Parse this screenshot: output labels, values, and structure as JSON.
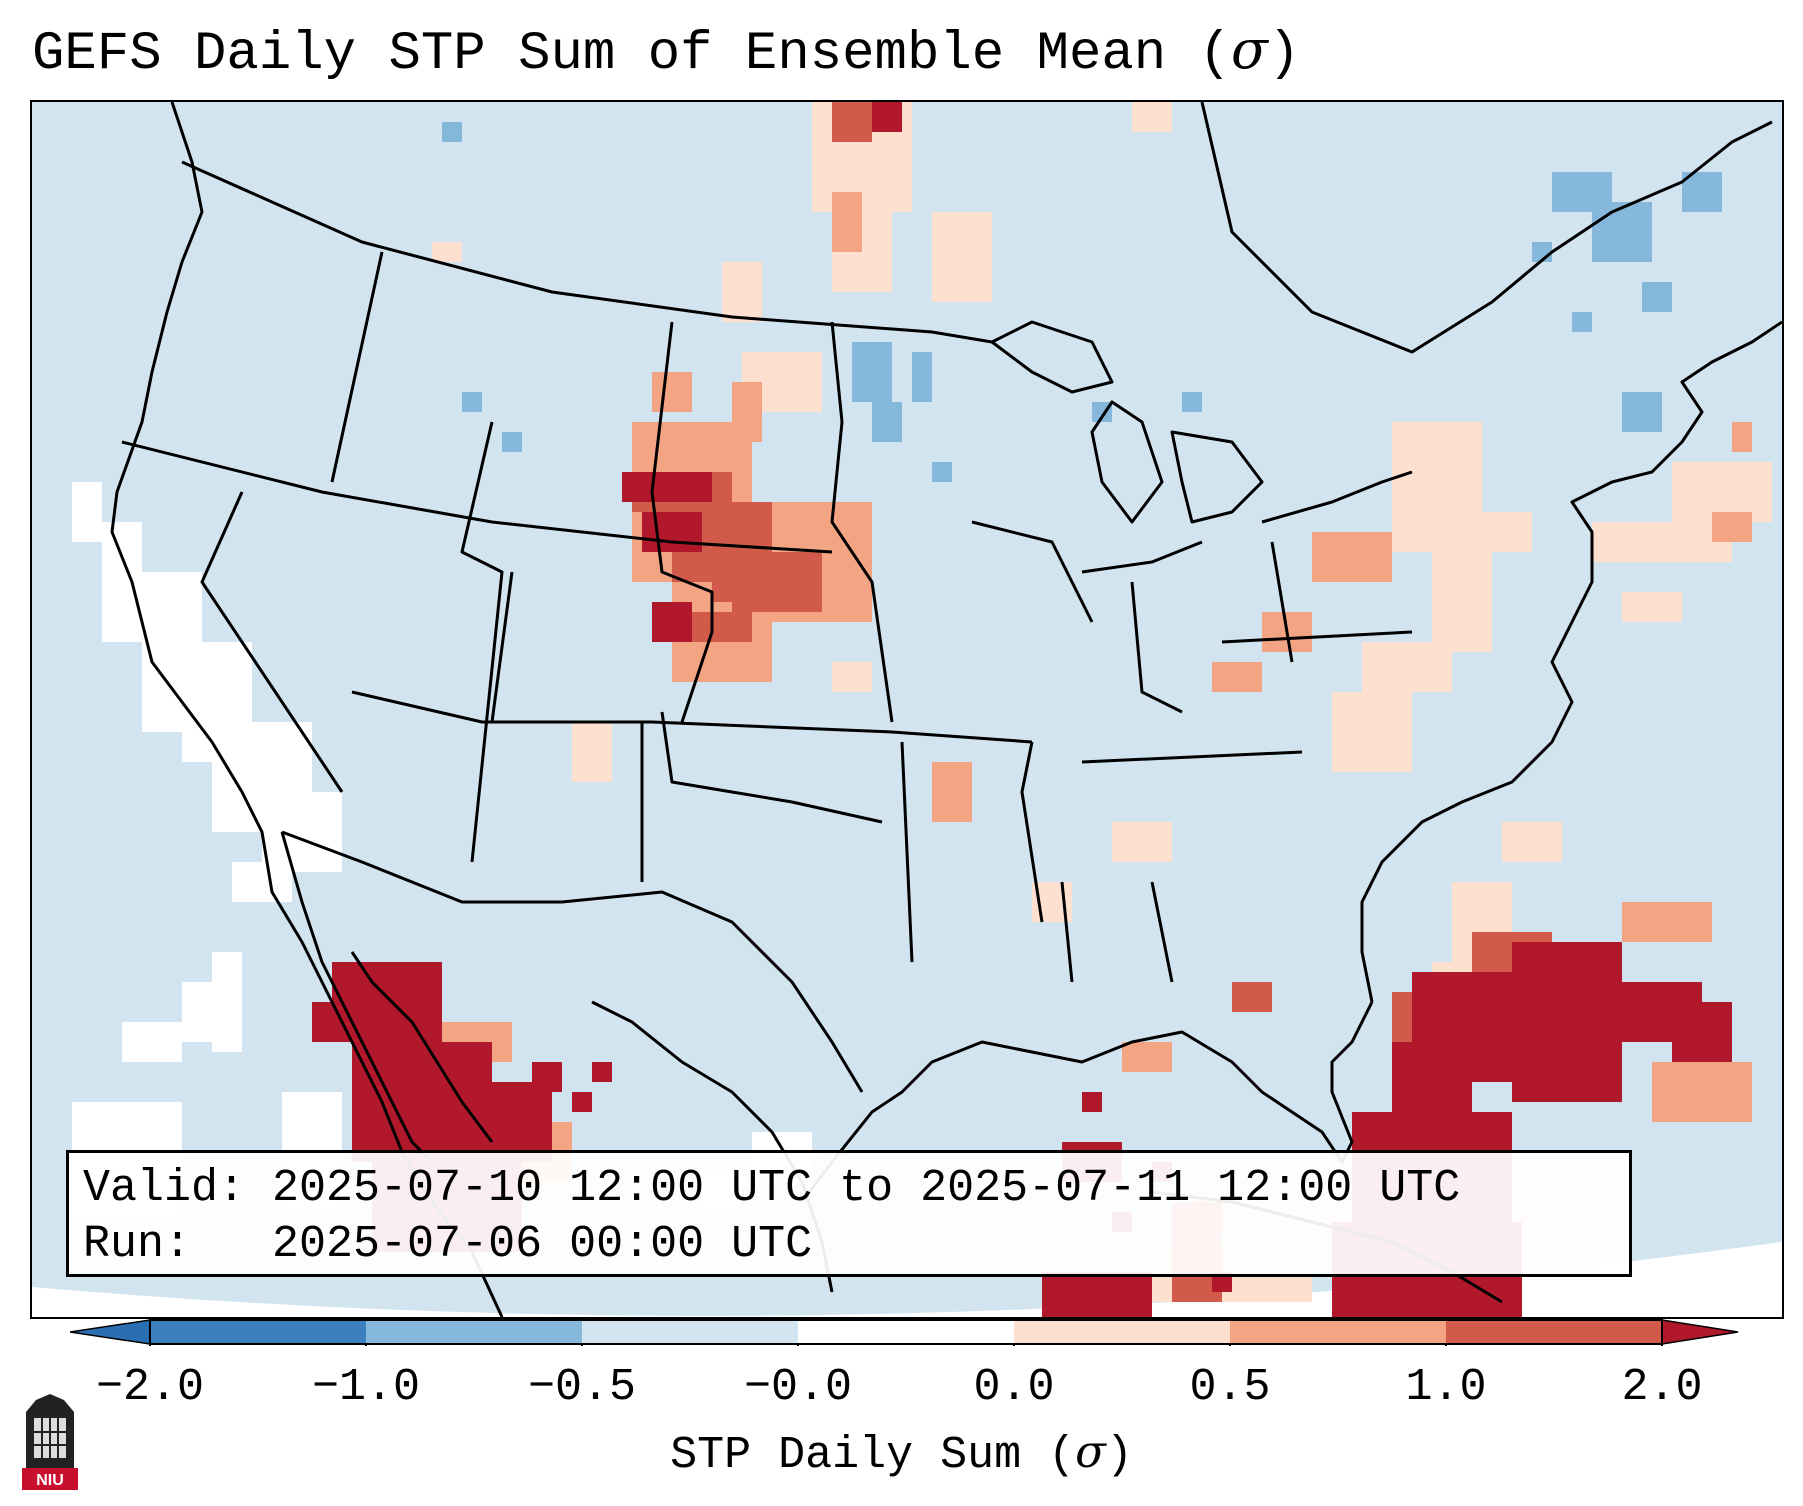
{
  "title": {
    "prefix": "GEFS Daily STP Sum of Ensemble Mean (",
    "symbol": "σ",
    "suffix": ")"
  },
  "info": {
    "valid_line": "Valid: 2025-07-10 12:00 UTC to 2025-07-11 12:00 UTC",
    "run_line": "Run:   2025-07-06 00:00 UTC"
  },
  "colorbar": {
    "label_prefix": "STP Daily Sum (",
    "label_symbol": "σ",
    "label_suffix": ")",
    "ticks": [
      "−2.0",
      "−1.0",
      "−0.5",
      "−0.0",
      "0.0",
      "0.5",
      "1.0",
      "2.0"
    ],
    "colors": [
      "#3b7fbf",
      "#86b8db",
      "#d1e4f0",
      "#fde0d0",
      "#f3a583",
      "#d25a4b"
    ],
    "extend_low_color": "#2a6fb2",
    "extend_high_color": "#b2182b"
  },
  "map": {
    "ocean_color": "#d1e4f0",
    "land_color": "#d1e4f0",
    "anomaly_regions": [
      {
        "region": "Nebraska / South Dakota",
        "category": "high"
      },
      {
        "region": "Northwest Mexico",
        "category": "high"
      },
      {
        "region": "Bahamas / Cuba",
        "category": "high"
      },
      {
        "region": "Mid-Atlantic coast",
        "category": "low-positive"
      },
      {
        "region": "Eastern Pacific",
        "category": "near-zero"
      }
    ]
  },
  "logo": {
    "text": "NIU"
  }
}
